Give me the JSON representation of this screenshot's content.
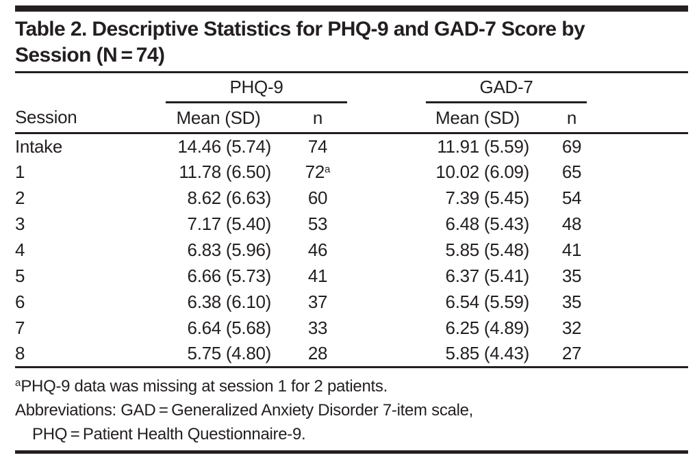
{
  "page": {
    "background": "#ffffff",
    "text_color": "#231f20",
    "rule_color": "#231f20"
  },
  "title": {
    "line1": "Table 2. Descriptive Statistics for PHQ-9 and GAD-7 Score by",
    "line2": "Session (N = 74)"
  },
  "table": {
    "group_headers": [
      "PHQ-9",
      "GAD-7"
    ],
    "col_headers": {
      "session": "Session",
      "phq_mean_sd": "Mean (SD)",
      "phq_n": "n",
      "gad_mean_sd": "Mean (SD)",
      "gad_n": "n"
    },
    "rows": [
      {
        "session": "Intake",
        "phq_mean_sd": "14.46 (5.74)",
        "phq_n": "74",
        "phq_n_sup": "",
        "gad_mean_sd": "11.91 (5.59)",
        "gad_n": "69"
      },
      {
        "session": "1",
        "phq_mean_sd": "11.78 (6.50)",
        "phq_n": "72",
        "phq_n_sup": "a",
        "gad_mean_sd": "10.02 (6.09)",
        "gad_n": "65"
      },
      {
        "session": "2",
        "phq_mean_sd": "8.62 (6.63)",
        "phq_n": "60",
        "phq_n_sup": "",
        "gad_mean_sd": "7.39 (5.45)",
        "gad_n": "54"
      },
      {
        "session": "3",
        "phq_mean_sd": "7.17 (5.40)",
        "phq_n": "53",
        "phq_n_sup": "",
        "gad_mean_sd": "6.48 (5.43)",
        "gad_n": "48"
      },
      {
        "session": "4",
        "phq_mean_sd": "6.83 (5.96)",
        "phq_n": "46",
        "phq_n_sup": "",
        "gad_mean_sd": "5.85 (5.48)",
        "gad_n": "41"
      },
      {
        "session": "5",
        "phq_mean_sd": "6.66 (5.73)",
        "phq_n": "41",
        "phq_n_sup": "",
        "gad_mean_sd": "6.37 (5.41)",
        "gad_n": "35"
      },
      {
        "session": "6",
        "phq_mean_sd": "6.38 (6.10)",
        "phq_n": "37",
        "phq_n_sup": "",
        "gad_mean_sd": "6.54 (5.59)",
        "gad_n": "35"
      },
      {
        "session": "7",
        "phq_mean_sd": "6.64 (5.68)",
        "phq_n": "33",
        "phq_n_sup": "",
        "gad_mean_sd": "6.25 (4.89)",
        "gad_n": "32"
      },
      {
        "session": "8",
        "phq_mean_sd": "5.75 (4.80)",
        "phq_n": "28",
        "phq_n_sup": "",
        "gad_mean_sd": "5.85 (4.43)",
        "gad_n": "27"
      }
    ]
  },
  "footnotes": [
    {
      "marker": "a",
      "text": "PHQ-9 data was missing at session 1 for 2 patients."
    },
    {
      "marker": "",
      "text": "Abbreviations: GAD = Generalized Anxiety Disorder 7-item scale,"
    },
    {
      "marker": "",
      "text": "PHQ = Patient Health Questionnaire-9."
    }
  ]
}
